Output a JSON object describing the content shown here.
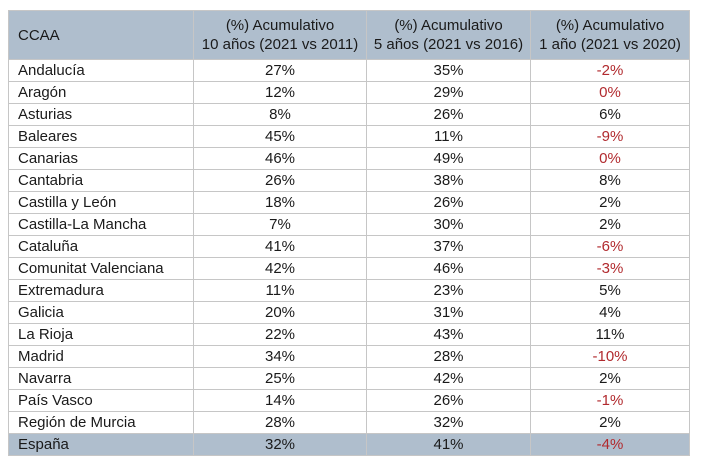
{
  "chart_data": {
    "type": "table",
    "columns": [
      {
        "id": "ccaa",
        "label": "CCAA"
      },
      {
        "id": "y10",
        "label_line1": "(%) Acumulativo",
        "label_line2": "10 años (2021 vs 2011)"
      },
      {
        "id": "y5",
        "label_line1": "(%) Acumulativo",
        "label_line2": "5 años (2021 vs 2016)"
      },
      {
        "id": "y1",
        "label_line1": "(%) Acumulativo",
        "label_line2": "1 año (2021 vs 2020)"
      }
    ],
    "rows": [
      {
        "ccaa": "Andalucía",
        "y10": "27%",
        "y5": "35%",
        "y1": "-2%",
        "y1_red": true,
        "highlight": false
      },
      {
        "ccaa": "Aragón",
        "y10": "12%",
        "y5": "29%",
        "y1": "0%",
        "y1_red": true,
        "highlight": false
      },
      {
        "ccaa": "Asturias",
        "y10": "8%",
        "y5": "26%",
        "y1": "6%",
        "y1_red": false,
        "highlight": false
      },
      {
        "ccaa": "Baleares",
        "y10": "45%",
        "y5": "11%",
        "y1": "-9%",
        "y1_red": true,
        "highlight": false
      },
      {
        "ccaa": "Canarias",
        "y10": "46%",
        "y5": "49%",
        "y1": "0%",
        "y1_red": true,
        "highlight": false
      },
      {
        "ccaa": "Cantabria",
        "y10": "26%",
        "y5": "38%",
        "y1": "8%",
        "y1_red": false,
        "highlight": false
      },
      {
        "ccaa": "Castilla y León",
        "y10": "18%",
        "y5": "26%",
        "y1": "2%",
        "y1_red": false,
        "highlight": false
      },
      {
        "ccaa": "Castilla-La Mancha",
        "y10": "7%",
        "y5": "30%",
        "y1": "2%",
        "y1_red": false,
        "highlight": false
      },
      {
        "ccaa": "Cataluña",
        "y10": "41%",
        "y5": "37%",
        "y1": "-6%",
        "y1_red": true,
        "highlight": false
      },
      {
        "ccaa": "Comunitat Valenciana",
        "y10": "42%",
        "y5": "46%",
        "y1": "-3%",
        "y1_red": true,
        "highlight": false
      },
      {
        "ccaa": "Extremadura",
        "y10": "11%",
        "y5": "23%",
        "y1": "5%",
        "y1_red": false,
        "highlight": false
      },
      {
        "ccaa": "Galicia",
        "y10": "20%",
        "y5": "31%",
        "y1": "4%",
        "y1_red": false,
        "highlight": false
      },
      {
        "ccaa": "La Rioja",
        "y10": "22%",
        "y5": "43%",
        "y1": "11%",
        "y1_red": false,
        "highlight": false
      },
      {
        "ccaa": "Madrid",
        "y10": "34%",
        "y5": "28%",
        "y1": "-10%",
        "y1_red": true,
        "highlight": false
      },
      {
        "ccaa": "Navarra",
        "y10": "25%",
        "y5": "42%",
        "y1": "2%",
        "y1_red": false,
        "highlight": false
      },
      {
        "ccaa": "País Vasco",
        "y10": "14%",
        "y5": "26%",
        "y1": "-1%",
        "y1_red": true,
        "highlight": false
      },
      {
        "ccaa": "Región de Murcia",
        "y10": "28%",
        "y5": "32%",
        "y1": "2%",
        "y1_red": false,
        "highlight": false
      },
      {
        "ccaa": "España",
        "y10": "32%",
        "y5": "41%",
        "y1": "-4%",
        "y1_red": true,
        "highlight": true
      }
    ]
  },
  "colors": {
    "header_bg": "#afbecd",
    "highlight_bg": "#afbecd",
    "negative_text": "#b12a2e",
    "text": "#1a1a1a",
    "header_text": "#1f2733",
    "border_inner": "#c6c6c6",
    "border_outer": "#a3a3a3"
  }
}
